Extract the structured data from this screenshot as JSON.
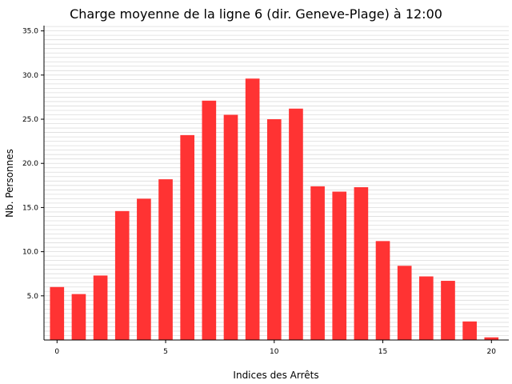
{
  "chart_data": {
    "type": "bar",
    "title": "Charge moyenne de la ligne 6 (dir. Geneve-Plage) à 12:00",
    "xlabel": "Indices des Arrêts",
    "ylabel": "Nb. Personnes",
    "categories": [
      0,
      1,
      2,
      3,
      4,
      5,
      6,
      7,
      8,
      9,
      10,
      11,
      12,
      13,
      14,
      15,
      16,
      17,
      18,
      19,
      20
    ],
    "values": [
      6.0,
      5.2,
      7.3,
      14.6,
      16.0,
      18.2,
      23.2,
      27.1,
      25.5,
      29.6,
      25.0,
      26.2,
      17.4,
      16.8,
      17.3,
      11.2,
      8.4,
      7.2,
      6.7,
      2.1,
      0.3
    ],
    "xticks": [
      0,
      5,
      10,
      15,
      20
    ],
    "yticks": [
      5.0,
      10.0,
      15.0,
      20.0,
      25.0,
      30.0,
      35.0
    ],
    "ylim": [
      0,
      35.6
    ],
    "xlim": [
      -0.6,
      20.8
    ],
    "grid": "horizontal minor lines",
    "bar_color": "#ff3333"
  }
}
